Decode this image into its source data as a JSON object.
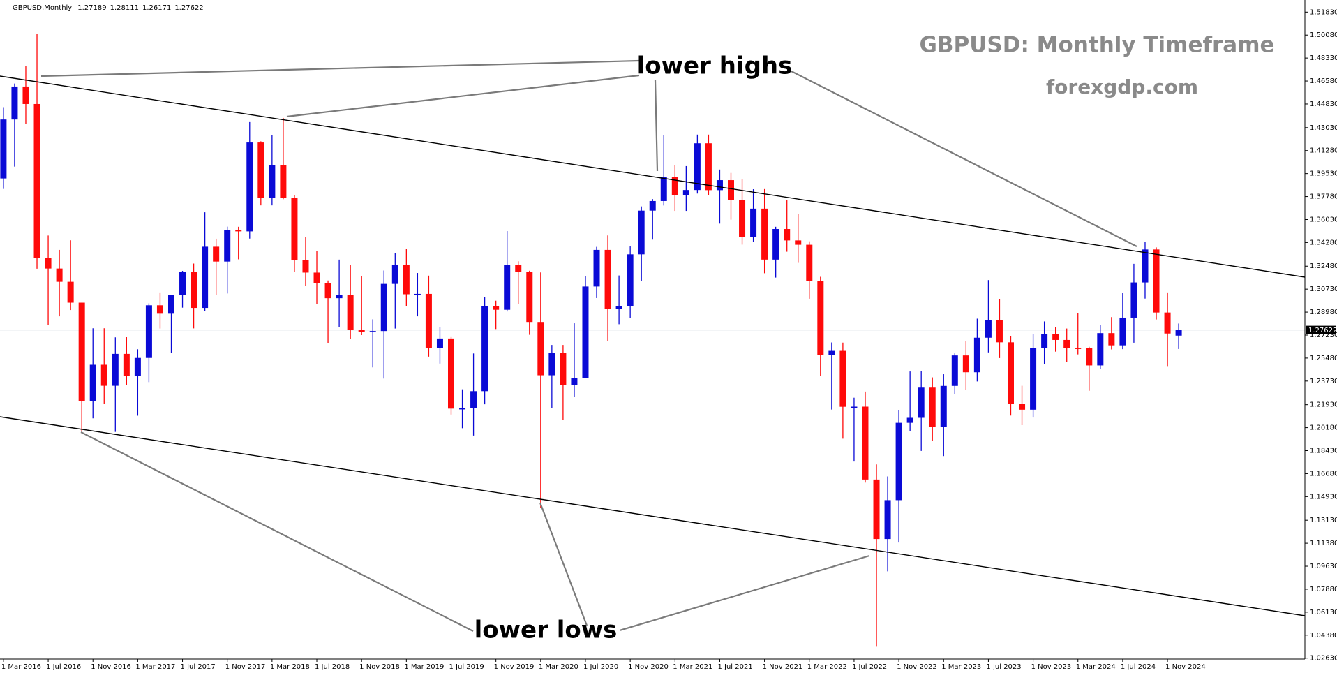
{
  "chart_data": {
    "type": "candlestick",
    "symbol": "GBPUSD,Monthly",
    "title": "GBPUSD: Monthly Timeframe",
    "subtitle": "forexgdp.com",
    "annotations": [
      "lower highs",
      "lower lows"
    ],
    "up_color": "#0a0ad6",
    "down_color": "#ff0a0a",
    "price_line_color": "#98aabb",
    "ylim": [
      1.0256,
      1.5275
    ],
    "yticks": [
      {
        "value": 1.0263,
        "label": "1.02630"
      },
      {
        "value": 1.0438,
        "label": "1.04380"
      },
      {
        "value": 1.0613,
        "label": "1.06130"
      },
      {
        "value": 1.0788,
        "label": "1.07880"
      },
      {
        "value": 1.0963,
        "label": "1.09630"
      },
      {
        "value": 1.1138,
        "label": "1.11380"
      },
      {
        "value": 1.1313,
        "label": "1.13130"
      },
      {
        "value": 1.1493,
        "label": "1.14930"
      },
      {
        "value": 1.1668,
        "label": "1.16680"
      },
      {
        "value": 1.1843,
        "label": "1.18430"
      },
      {
        "value": 1.2018,
        "label": "1.20180"
      },
      {
        "value": 1.2193,
        "label": "1.21930"
      },
      {
        "value": 1.2373,
        "label": "1.23730"
      },
      {
        "value": 1.2548,
        "label": "1.25480"
      },
      {
        "value": 1.2723,
        "label": "1.27230"
      },
      {
        "value": 1.2898,
        "label": "1.28980"
      },
      {
        "value": 1.3073,
        "label": "1.30730"
      },
      {
        "value": 1.3248,
        "label": "1.32480"
      },
      {
        "value": 1.3428,
        "label": "1.34280"
      },
      {
        "value": 1.3603,
        "label": "1.36030"
      },
      {
        "value": 1.3778,
        "label": "1.37780"
      },
      {
        "value": 1.3953,
        "label": "1.39530"
      },
      {
        "value": 1.4128,
        "label": "1.41280"
      },
      {
        "value": 1.4303,
        "label": "1.43030"
      },
      {
        "value": 1.4483,
        "label": "1.44830"
      },
      {
        "value": 1.4658,
        "label": "1.46580"
      },
      {
        "value": 1.4833,
        "label": "1.48330"
      },
      {
        "value": 1.5008,
        "label": "1.50080"
      },
      {
        "value": 1.5183,
        "label": "1.51830"
      }
    ],
    "categories": [
      "1 Mar 2016",
      null,
      null,
      null,
      "1 Jul 2016",
      null,
      null,
      null,
      "1 Nov 2016",
      null,
      null,
      null,
      "1 Mar 2017",
      null,
      null,
      null,
      "1 Jul 2017",
      null,
      null,
      null,
      "1 Nov 2017",
      null,
      null,
      null,
      "1 Mar 2018",
      null,
      null,
      null,
      "1 Jul 2018",
      null,
      null,
      null,
      "1 Nov 2018",
      null,
      null,
      null,
      "1 Mar 2019",
      null,
      null,
      null,
      "1 Jul 2019",
      null,
      null,
      null,
      "1 Nov 2019",
      null,
      null,
      null,
      "1 Mar 2020",
      null,
      null,
      null,
      "1 Jul 2020",
      null,
      null,
      null,
      "1 Nov 2020",
      null,
      null,
      null,
      "1 Mar 2021",
      null,
      null,
      null,
      "1 Jul 2021",
      null,
      null,
      null,
      "1 Nov 2021",
      null,
      null,
      null,
      "1 Mar 2022",
      null,
      null,
      null,
      "1 Jul 2022",
      null,
      null,
      null,
      "1 Nov 2022",
      null,
      null,
      null,
      "1 Mar 2023",
      null,
      null,
      null,
      "1 Jul 2023",
      null,
      null,
      null,
      "1 Nov 2023",
      null,
      null,
      null,
      "1 Mar 2024",
      null,
      null,
      null,
      "1 Jul 2024",
      null,
      null,
      null,
      "1 Nov 2024",
      null
    ],
    "ohlc": [
      [
        1.3916,
        1.4459,
        1.3836,
        1.4365
      ],
      [
        1.4365,
        1.4639,
        1.4006,
        1.4616
      ],
      [
        1.4616,
        1.477,
        1.4331,
        1.4483
      ],
      [
        1.4483,
        1.5018,
        1.3229,
        1.331
      ],
      [
        1.331,
        1.3481,
        1.2798,
        1.323
      ],
      [
        1.323,
        1.3372,
        1.2866,
        1.3129
      ],
      [
        1.3129,
        1.3445,
        1.2914,
        1.297
      ],
      [
        1.297,
        1.297,
        1.1986,
        1.2218
      ],
      [
        1.2218,
        1.2775,
        1.2089,
        1.2497
      ],
      [
        1.2497,
        1.2775,
        1.2199,
        1.2337
      ],
      [
        1.2337,
        1.2706,
        1.1986,
        1.258
      ],
      [
        1.258,
        1.2707,
        1.2345,
        1.2414
      ],
      [
        1.2414,
        1.2615,
        1.2109,
        1.2549
      ],
      [
        1.2549,
        1.2965,
        1.2365,
        1.295
      ],
      [
        1.295,
        1.3048,
        1.2773,
        1.2886
      ],
      [
        1.2886,
        1.303,
        1.2589,
        1.3027
      ],
      [
        1.3027,
        1.3212,
        1.2932,
        1.3205
      ],
      [
        1.3205,
        1.3268,
        1.2774,
        1.293
      ],
      [
        1.293,
        1.3658,
        1.2907,
        1.3396
      ],
      [
        1.3396,
        1.3457,
        1.3027,
        1.3283
      ],
      [
        1.3283,
        1.3549,
        1.304,
        1.3525
      ],
      [
        1.3525,
        1.3548,
        1.33,
        1.3513
      ],
      [
        1.3513,
        1.4345,
        1.3458,
        1.419
      ],
      [
        1.419,
        1.4199,
        1.3711,
        1.3768
      ],
      [
        1.3768,
        1.4245,
        1.3711,
        1.4016
      ],
      [
        1.4016,
        1.4377,
        1.3758,
        1.3766
      ],
      [
        1.3766,
        1.379,
        1.3205,
        1.3296
      ],
      [
        1.3296,
        1.3472,
        1.31,
        1.3199
      ],
      [
        1.3199,
        1.3363,
        1.2957,
        1.3121
      ],
      [
        1.3121,
        1.3139,
        1.2662,
        1.3004
      ],
      [
        1.3004,
        1.3298,
        1.2786,
        1.3029
      ],
      [
        1.3029,
        1.3258,
        1.2695,
        1.2763
      ],
      [
        1.2763,
        1.3175,
        1.2723,
        1.2749
      ],
      [
        1.2749,
        1.2843,
        1.2477,
        1.2754
      ],
      [
        1.2754,
        1.3215,
        1.2392,
        1.3113
      ],
      [
        1.3113,
        1.335,
        1.2773,
        1.326
      ],
      [
        1.326,
        1.3381,
        1.2945,
        1.3034
      ],
      [
        1.3034,
        1.3196,
        1.2866,
        1.3037
      ],
      [
        1.3037,
        1.3176,
        1.2559,
        1.2625
      ],
      [
        1.2625,
        1.2784,
        1.2506,
        1.2697
      ],
      [
        1.2697,
        1.2708,
        1.2118,
        1.2163
      ],
      [
        1.2163,
        1.231,
        1.2014,
        1.2165
      ],
      [
        1.2165,
        1.2583,
        1.1958,
        1.2296
      ],
      [
        1.2296,
        1.3012,
        1.2196,
        1.2944
      ],
      [
        1.2944,
        1.2985,
        1.2769,
        1.2916
      ],
      [
        1.2916,
        1.3515,
        1.2903,
        1.3255
      ],
      [
        1.3255,
        1.3285,
        1.2962,
        1.3206
      ],
      [
        1.3206,
        1.3213,
        1.2725,
        1.2823
      ],
      [
        1.2823,
        1.32,
        1.141,
        1.2417
      ],
      [
        1.2417,
        1.2648,
        1.2165,
        1.2587
      ],
      [
        1.2587,
        1.2648,
        1.2075,
        1.2344
      ],
      [
        1.2344,
        1.2813,
        1.2252,
        1.2397
      ],
      [
        1.2397,
        1.317,
        1.2401,
        1.3093
      ],
      [
        1.3093,
        1.3395,
        1.3005,
        1.3372
      ],
      [
        1.3372,
        1.3482,
        1.2676,
        1.2921
      ],
      [
        1.2921,
        1.3177,
        1.2806,
        1.2942
      ],
      [
        1.2942,
        1.3398,
        1.2855,
        1.3338
      ],
      [
        1.3338,
        1.3703,
        1.3134,
        1.3671
      ],
      [
        1.3671,
        1.3759,
        1.345,
        1.3744
      ],
      [
        1.3744,
        1.4244,
        1.371,
        1.3927
      ],
      [
        1.3927,
        1.4017,
        1.3669,
        1.3787
      ],
      [
        1.3787,
        1.401,
        1.3669,
        1.3828
      ],
      [
        1.3828,
        1.425,
        1.3801,
        1.4184
      ],
      [
        1.4184,
        1.425,
        1.3787,
        1.3827
      ],
      [
        1.3827,
        1.3984,
        1.3572,
        1.3903
      ],
      [
        1.3903,
        1.3958,
        1.3602,
        1.3751
      ],
      [
        1.3751,
        1.3913,
        1.3412,
        1.347
      ],
      [
        1.347,
        1.3834,
        1.3434,
        1.3686
      ],
      [
        1.3686,
        1.3835,
        1.3194,
        1.3298
      ],
      [
        1.3298,
        1.3548,
        1.3161,
        1.3531
      ],
      [
        1.3531,
        1.3749,
        1.3358,
        1.3444
      ],
      [
        1.3444,
        1.3643,
        1.3273,
        1.3411
      ],
      [
        1.3411,
        1.3437,
        1.3,
        1.3137
      ],
      [
        1.3137,
        1.3167,
        1.241,
        1.2574
      ],
      [
        1.2574,
        1.2667,
        1.2156,
        1.2603
      ],
      [
        1.2603,
        1.2666,
        1.1934,
        1.2177
      ],
      [
        1.2177,
        1.2246,
        1.176,
        1.2178
      ],
      [
        1.2178,
        1.2293,
        1.16,
        1.1623
      ],
      [
        1.1623,
        1.1738,
        1.035,
        1.117
      ],
      [
        1.117,
        1.1646,
        1.0924,
        1.1466
      ],
      [
        1.1466,
        1.2154,
        1.1143,
        1.2055
      ],
      [
        1.2055,
        1.2446,
        1.1992,
        1.2093
      ],
      [
        1.2093,
        1.2447,
        1.1841,
        1.2323
      ],
      [
        1.2323,
        1.2401,
        1.1915,
        1.2023
      ],
      [
        1.2023,
        1.2425,
        1.1802,
        1.2336
      ],
      [
        1.2336,
        1.2584,
        1.2275,
        1.2568
      ],
      [
        1.2568,
        1.268,
        1.2308,
        1.244
      ],
      [
        1.244,
        1.2848,
        1.237,
        1.2703
      ],
      [
        1.2703,
        1.3142,
        1.2591,
        1.2837
      ],
      [
        1.2837,
        1.2997,
        1.2548,
        1.2668
      ],
      [
        1.2668,
        1.2713,
        1.211,
        1.22
      ],
      [
        1.22,
        1.2337,
        1.2037,
        1.2155
      ],
      [
        1.2155,
        1.2733,
        1.2095,
        1.2622
      ],
      [
        1.2622,
        1.2827,
        1.25,
        1.273
      ],
      [
        1.273,
        1.2785,
        1.2597,
        1.2686
      ],
      [
        1.2686,
        1.2773,
        1.2518,
        1.2625
      ],
      [
        1.2625,
        1.2893,
        1.2576,
        1.2622
      ],
      [
        1.2622,
        1.2634,
        1.2299,
        1.2492
      ],
      [
        1.2492,
        1.2801,
        1.2464,
        1.2738
      ],
      [
        1.2738,
        1.286,
        1.2614,
        1.2645
      ],
      [
        1.2645,
        1.3044,
        1.2616,
        1.2856
      ],
      [
        1.2856,
        1.3266,
        1.2665,
        1.3124
      ],
      [
        1.3124,
        1.3434,
        1.3001,
        1.3375
      ],
      [
        1.3375,
        1.3391,
        1.2842,
        1.2895
      ],
      [
        1.2895,
        1.3048,
        1.2487,
        1.2735
      ],
      [
        1.27189,
        1.28111,
        1.26171,
        1.27622
      ]
    ]
  }
}
